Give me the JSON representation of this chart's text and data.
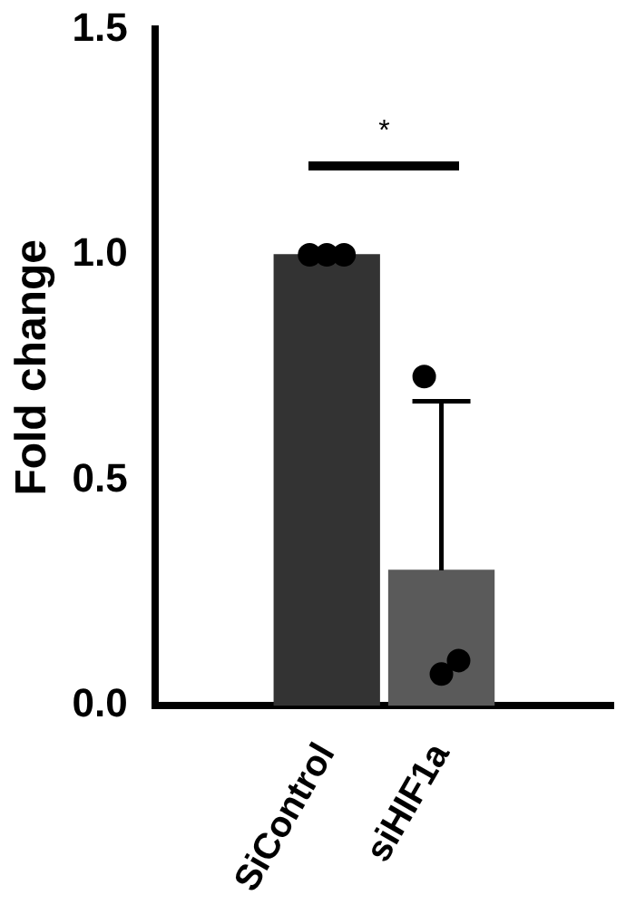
{
  "chart_data": {
    "type": "bar",
    "categories": [
      "SiControl",
      "siHIF1a"
    ],
    "values": [
      1.0,
      0.3
    ],
    "colors": [
      "#333333",
      "#5a5a5a"
    ],
    "errors": [
      null,
      [
        0.3,
        0.675
      ]
    ],
    "series": [
      {
        "type": "scatter",
        "color": "#000000",
        "x": [
          "SiControl",
          "SiControl",
          "SiControl",
          "siHIF1a",
          "siHIF1a",
          "siHIF1a"
        ],
        "values": [
          1.0,
          1.0,
          1.0,
          0.73,
          0.07,
          0.1
        ]
      }
    ],
    "ylabel": "Fold change",
    "ylim": [
      0,
      1.5
    ],
    "yticks": [
      {
        "value": 0,
        "label": "0.0"
      },
      {
        "value": 0.5,
        "label": "0.5"
      },
      {
        "value": 1,
        "label": "1.0"
      },
      {
        "value": 1.5,
        "label": "1.5"
      }
    ],
    "annotations": [
      "*"
    ],
    "grid": false,
    "legend": false,
    "marker": "circle"
  }
}
